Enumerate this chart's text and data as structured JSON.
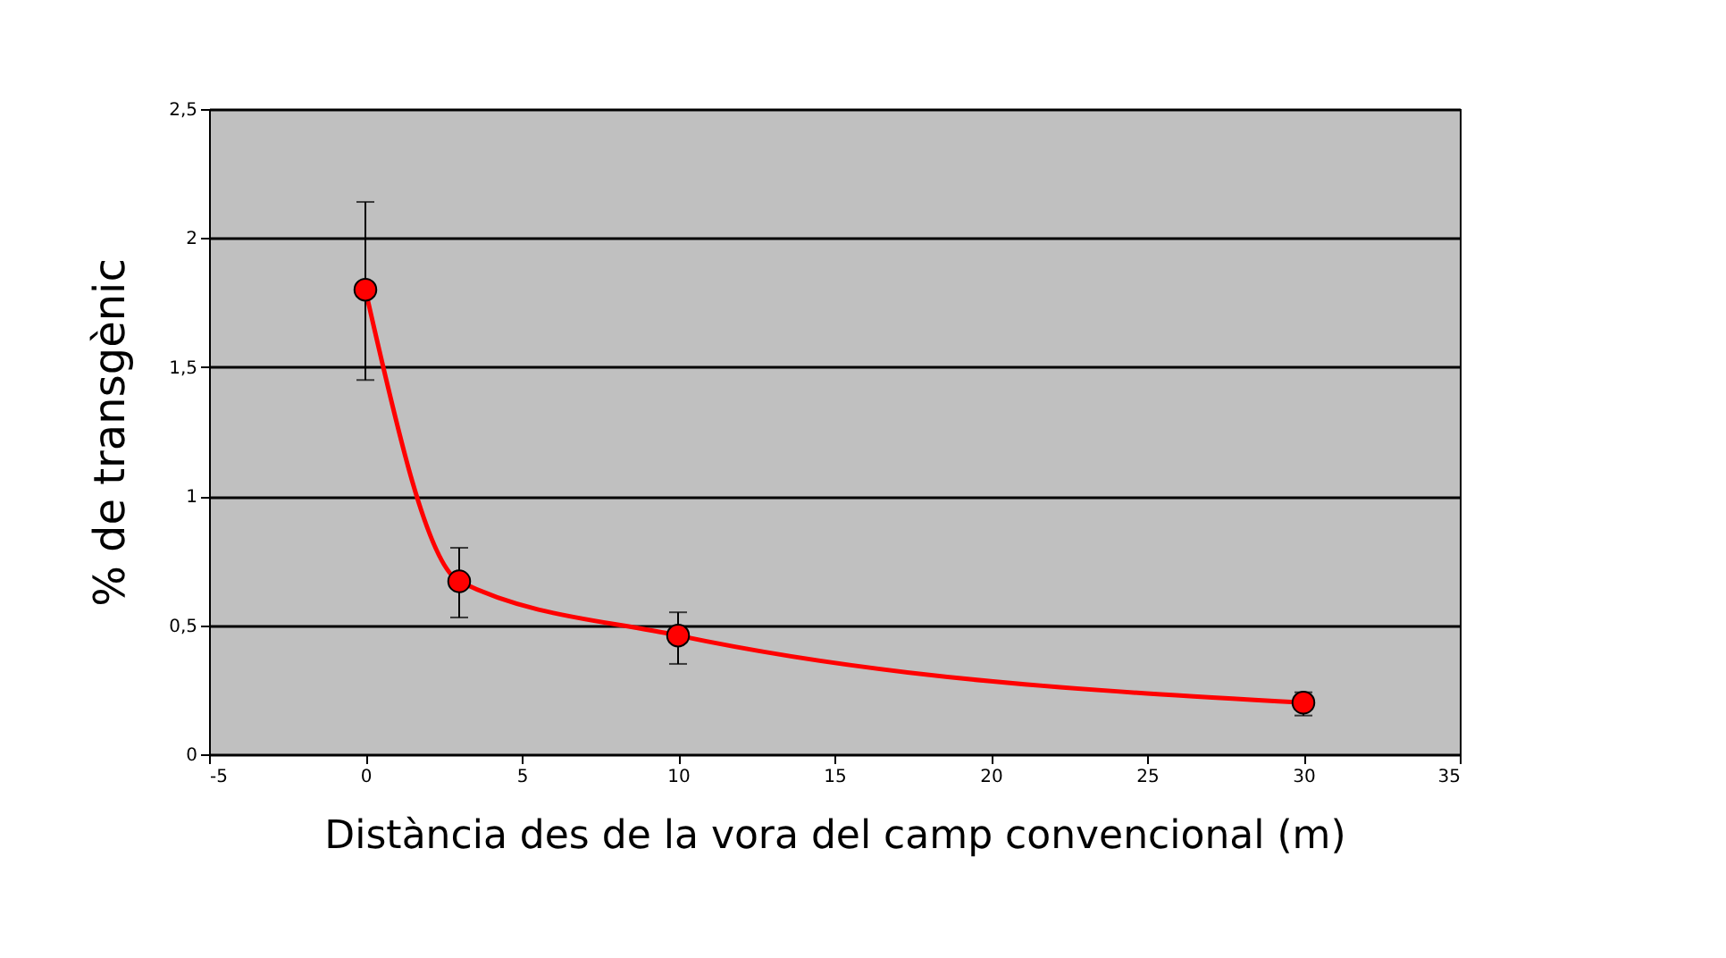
{
  "chart_data": {
    "type": "line",
    "xlabel": "Distància des de la vora del camp convencional (m)",
    "ylabel": "% de transgènic",
    "x": [
      0,
      3,
      10,
      30
    ],
    "series": [
      {
        "color": "#ff0000",
        "values": [
          1.8,
          0.67,
          0.46,
          0.2
        ],
        "errors": [
          [
            1.45,
            2.14
          ],
          [
            0.53,
            0.8
          ],
          [
            0.35,
            0.55
          ],
          [
            0.15,
            0.24
          ]
        ]
      }
    ],
    "xlim": [
      -5,
      35
    ],
    "xticks": [
      -5,
      0,
      5,
      10,
      15,
      20,
      25,
      30,
      35
    ],
    "ylim": [
      0,
      2.5
    ],
    "yticks": [
      {
        "value": 0,
        "label": "0"
      },
      {
        "value": 0.5,
        "label": "0,5"
      },
      {
        "value": 1,
        "label": "1"
      },
      {
        "value": 1.5,
        "label": "1,5"
      },
      {
        "value": 2,
        "label": "2"
      },
      {
        "value": 2.5,
        "label": "2,5"
      }
    ],
    "grid": "y",
    "marker": "circle",
    "line_style": "solid"
  }
}
